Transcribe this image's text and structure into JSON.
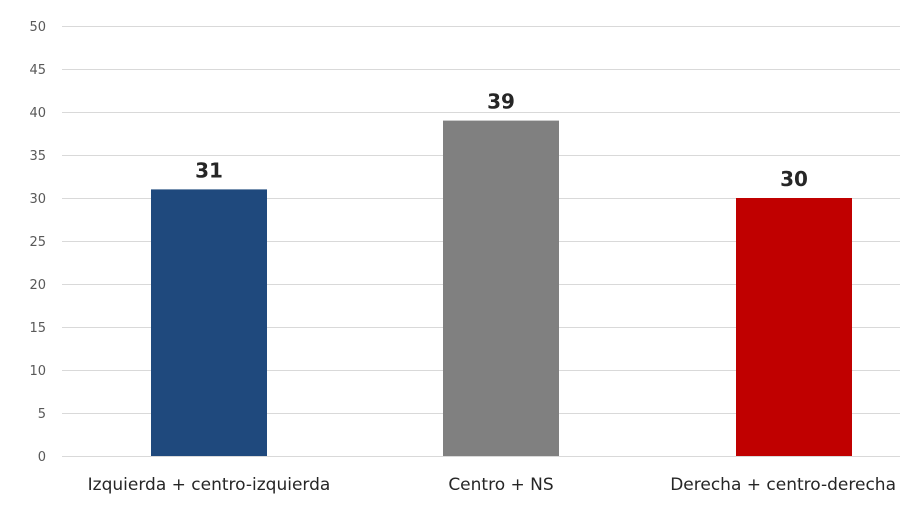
{
  "chart_data": {
    "type": "bar",
    "categories": [
      "Izquierda + centro-izquierda",
      "Centro + NS",
      "Derecha + centro-derecha"
    ],
    "values": [
      31,
      39,
      30
    ],
    "data_labels": [
      "31",
      "39",
      "30"
    ],
    "bar_colors": [
      "#1f497d",
      "#808080",
      "#c00000"
    ],
    "ylim": [
      0,
      50
    ],
    "yticks": [
      0,
      5,
      10,
      15,
      20,
      25,
      30,
      35,
      40,
      45,
      50
    ],
    "ytick_labels": [
      "0",
      "5",
      "10",
      "15",
      "20",
      "25",
      "30",
      "35",
      "40",
      "45",
      "50"
    ],
    "grid": true,
    "legend": "none",
    "title": "",
    "xlabel": "",
    "ylabel": ""
  }
}
